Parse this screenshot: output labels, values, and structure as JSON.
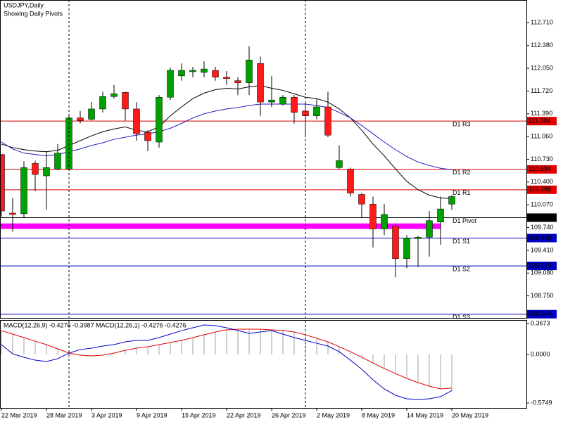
{
  "chart_data": [
    {
      "type": "candlestick",
      "title": "USDJPY,Daily",
      "subtitle": "Showing Daily Pivots",
      "categories": [
        "22 Mar 2019",
        null,
        null,
        null,
        "28 Mar 2019",
        null,
        null,
        null,
        "3 Apr 2019",
        null,
        null,
        null,
        "9 Apr 2019",
        null,
        null,
        null,
        "15 Apr 2019",
        null,
        null,
        null,
        "22 Apr 2019",
        null,
        null,
        null,
        "26 Apr 2019",
        null,
        null,
        null,
        "2 May 2019",
        null,
        null,
        null,
        "8 May 2019",
        null,
        null,
        null,
        "14 May 2019",
        null,
        null,
        null,
        "20 May 2019"
      ],
      "open": [
        110.8,
        109.95,
        109.94,
        110.67,
        110.49,
        110.59,
        110.59,
        111.33,
        111.31,
        111.46,
        111.64,
        111.7,
        111.46,
        111.12,
        110.98,
        111.63,
        111.94,
        112.0,
        111.99,
        112.02,
        111.92,
        111.87,
        111.84,
        112.12,
        111.56,
        111.53,
        111.63,
        111.43,
        111.36,
        111.49,
        110.61,
        110.59,
        110.22,
        110.08,
        109.72,
        109.76,
        109.29,
        109.58,
        109.6,
        109.82,
        110.08
      ],
      "high": [
        110.8,
        110.17,
        110.7,
        110.71,
        110.85,
        110.95,
        111.36,
        111.43,
        111.56,
        111.71,
        111.81,
        111.71,
        111.56,
        111.15,
        111.66,
        112.06,
        112.12,
        112.07,
        112.15,
        112.07,
        112.01,
        111.92,
        112.37,
        112.22,
        111.94,
        111.66,
        111.66,
        111.56,
        111.61,
        111.71,
        110.93,
        110.61,
        110.24,
        110.19,
        110.08,
        109.8,
        109.63,
        109.62,
        109.98,
        110.19,
        110.21
      ],
      "low": [
        109.9,
        109.68,
        109.88,
        110.27,
        110.0,
        110.57,
        110.57,
        111.25,
        111.29,
        111.41,
        111.61,
        111.29,
        111.0,
        110.85,
        110.9,
        111.59,
        111.87,
        111.92,
        111.92,
        111.87,
        111.81,
        111.66,
        111.66,
        111.36,
        111.49,
        111.51,
        111.25,
        111.05,
        111.31,
        111.05,
        110.59,
        110.19,
        109.88,
        109.45,
        109.63,
        109.02,
        109.15,
        109.17,
        109.32,
        109.49,
        110.0
      ],
      "close": [
        109.98,
        109.93,
        110.61,
        110.51,
        110.61,
        110.82,
        111.33,
        111.29,
        111.46,
        111.64,
        111.68,
        111.46,
        111.1,
        111.0,
        111.63,
        112.02,
        112.02,
        112.02,
        112.04,
        111.92,
        111.9,
        111.84,
        112.17,
        111.56,
        111.59,
        111.63,
        111.41,
        111.36,
        111.49,
        111.08,
        110.71,
        110.24,
        110.08,
        109.72,
        109.93,
        109.29,
        109.59,
        109.6,
        109.84,
        110.01,
        110.19
      ],
      "up_color": "#00a000",
      "down_color": "#ff1a1a",
      "lines": [
        {
          "color": "#000000",
          "values": [
            110.95,
            110.9,
            110.87,
            110.85,
            110.84,
            110.86,
            110.93,
            111.0,
            111.07,
            111.13,
            111.17,
            111.2,
            111.15,
            111.13,
            111.2,
            111.36,
            111.49,
            111.61,
            111.69,
            111.74,
            111.76,
            111.75,
            111.78,
            111.8,
            111.76,
            111.73,
            111.68,
            111.63,
            111.61,
            111.56,
            111.46,
            111.33,
            111.15,
            110.95,
            110.78,
            110.59,
            110.41,
            110.29,
            110.21,
            110.17,
            110.16
          ]
        },
        {
          "color": "#2020c0",
          "values": [
            110.98,
            110.88,
            110.82,
            110.8,
            110.78,
            110.8,
            110.84,
            110.88,
            110.93,
            110.97,
            111.02,
            111.05,
            111.08,
            111.1,
            111.13,
            111.18,
            111.25,
            111.33,
            111.39,
            111.43,
            111.46,
            111.48,
            111.51,
            111.53,
            111.53,
            111.53,
            111.53,
            111.53,
            111.51,
            111.48,
            111.41,
            111.33,
            111.22,
            111.1,
            110.98,
            110.87,
            110.77,
            110.69,
            110.64,
            110.6,
            110.58
          ]
        }
      ],
      "pivots": [
        {
          "label": "D1 R3",
          "value": 111.284,
          "color": "#e00000"
        },
        {
          "label": "D1 R2",
          "value": 110.584,
          "color": "#e00000"
        },
        {
          "label": "D1 R1",
          "value": 110.288,
          "color": "#e00000"
        },
        {
          "label": "D1 Pivot",
          "value": 109.884,
          "color": "#000000"
        },
        {
          "label": "D1 S1",
          "value": 109.588,
          "color": "#0000c0"
        },
        {
          "label": "D1 S2",
          "value": 109.184,
          "color": "#0000c0"
        },
        {
          "label": "D1 S3",
          "value": 108.484,
          "color": "#0000c0"
        }
      ],
      "zone": [
        109.72,
        109.8
      ],
      "zone_color": "#ff00ff",
      "ylim": [
        108.43,
        113.04
      ],
      "yticks": [
        {
          "value": 112.71,
          "label": "112.710"
        },
        {
          "value": 112.38,
          "label": "112.380"
        },
        {
          "value": 112.05,
          "label": "112.050"
        },
        {
          "value": 111.72,
          "label": "111.720"
        },
        {
          "value": 111.39,
          "label": "111.390"
        },
        {
          "value": 111.06,
          "label": "111.060"
        },
        {
          "value": 110.73,
          "label": "110.730"
        },
        {
          "value": 110.4,
          "label": "110.400"
        },
        {
          "value": 110.07,
          "label": "110.070"
        },
        {
          "value": 109.74,
          "label": "109.740"
        },
        {
          "value": 109.41,
          "label": "109.410"
        },
        {
          "value": 109.08,
          "label": "109.080"
        },
        {
          "value": 108.75,
          "label": "108.750"
        }
      ]
    },
    {
      "type": "macd",
      "title": "MACD(12,26,9) -0.4276 -0.3987 MACD(12,26,1) -0.4276 -0.4276",
      "histogram_color": "#a0a0a0",
      "histogram": [
        0.283,
        0.242,
        0.2,
        0.158,
        0.117,
        0.067,
        0.017,
        -0.008,
        -0.017,
        -0.008,
        0.017,
        0.05,
        0.075,
        0.092,
        0.117,
        0.142,
        0.167,
        0.2,
        0.233,
        0.267,
        0.292,
        0.3,
        0.3,
        0.3,
        0.292,
        0.283,
        0.267,
        0.233,
        0.192,
        0.15,
        0.092,
        0.033,
        -0.033,
        -0.1,
        -0.167,
        -0.225,
        -0.283,
        -0.333,
        -0.375,
        -0.408,
        -0.4276
      ],
      "lines": [
        {
          "color": "#e00000",
          "values": [
            0.283,
            0.242,
            0.2,
            0.158,
            0.117,
            0.067,
            0.017,
            -0.008,
            -0.017,
            -0.008,
            0.017,
            0.05,
            0.075,
            0.092,
            0.117,
            0.142,
            0.167,
            0.2,
            0.233,
            0.267,
            0.292,
            0.3,
            0.3,
            0.3,
            0.292,
            0.283,
            0.267,
            0.233,
            0.192,
            0.15,
            0.092,
            0.033,
            -0.033,
            -0.1,
            -0.167,
            -0.225,
            -0.283,
            -0.333,
            -0.375,
            -0.408,
            -0.3987
          ]
        },
        {
          "color": "#0000c8",
          "values": [
            0.117,
            0.008,
            -0.033,
            -0.067,
            -0.083,
            -0.05,
            0.017,
            0.058,
            0.075,
            0.1,
            0.117,
            0.15,
            0.167,
            0.167,
            0.2,
            0.242,
            0.283,
            0.317,
            0.35,
            0.342,
            0.317,
            0.283,
            0.25,
            0.267,
            0.283,
            0.242,
            0.2,
            0.167,
            0.133,
            0.1,
            0.033,
            -0.067,
            -0.175,
            -0.3,
            -0.408,
            -0.483,
            -0.525,
            -0.533,
            -0.525,
            -0.5,
            -0.4276
          ]
        }
      ],
      "ylim": [
        -0.633,
        0.4
      ],
      "yticks": [
        0.3673,
        {
          "value": 0,
          "label": "0.0000"
        },
        -0.5749
      ]
    }
  ]
}
